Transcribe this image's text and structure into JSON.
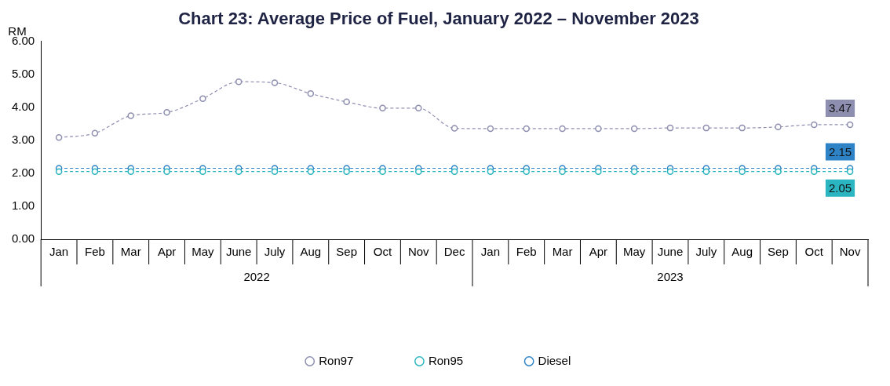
{
  "chart_data": {
    "type": "line",
    "title": "Chart 23: Average Price of Fuel, January 2022 – November 2023",
    "ylabel": "RM",
    "categories": [
      "Jan",
      "Feb",
      "Mar",
      "Apr",
      "May",
      "June",
      "July",
      "Aug",
      "Sep",
      "Oct",
      "Nov",
      "Dec",
      "Jan",
      "Feb",
      "Mar",
      "Apr",
      "May",
      "June",
      "July",
      "Aug",
      "Sep",
      "Oct",
      "Nov"
    ],
    "annotations": [
      "2022",
      "2023"
    ],
    "series": [
      {
        "name": "Ron97",
        "color": "#8e8fb0",
        "values": [
          3.08,
          3.21,
          3.74,
          3.84,
          4.26,
          4.77,
          4.74,
          4.41,
          4.16,
          3.97,
          3.97,
          3.36,
          3.35,
          3.35,
          3.35,
          3.35,
          3.35,
          3.37,
          3.37,
          3.37,
          3.4,
          3.47,
          3.47
        ],
        "value_labels": [
          null,
          null,
          null,
          null,
          null,
          null,
          null,
          null,
          null,
          null,
          null,
          null,
          null,
          null,
          null,
          null,
          null,
          null,
          null,
          null,
          null,
          null,
          "3.47"
        ]
      },
      {
        "name": "Ron95",
        "color": "#2bb5c0",
        "values": [
          2.05,
          2.05,
          2.05,
          2.05,
          2.05,
          2.05,
          2.05,
          2.05,
          2.05,
          2.05,
          2.05,
          2.05,
          2.05,
          2.05,
          2.05,
          2.05,
          2.05,
          2.05,
          2.05,
          2.05,
          2.05,
          2.05,
          2.05
        ],
        "value_labels": [
          null,
          null,
          null,
          null,
          null,
          null,
          null,
          null,
          null,
          null,
          null,
          null,
          null,
          null,
          null,
          null,
          null,
          null,
          null,
          null,
          null,
          null,
          "2.05"
        ]
      },
      {
        "name": "Diesel",
        "color": "#2e83c6",
        "values": [
          2.15,
          2.15,
          2.15,
          2.15,
          2.15,
          2.15,
          2.15,
          2.15,
          2.15,
          2.15,
          2.15,
          2.15,
          2.15,
          2.15,
          2.15,
          2.15,
          2.15,
          2.15,
          2.15,
          2.15,
          2.15,
          2.15,
          2.15
        ],
        "value_labels": [
          null,
          null,
          null,
          null,
          null,
          null,
          null,
          null,
          null,
          null,
          null,
          null,
          null,
          null,
          null,
          null,
          null,
          null,
          null,
          null,
          null,
          null,
          "2.15"
        ]
      }
    ],
    "ylim": [
      0,
      6
    ],
    "yticks": [
      {
        "value": 0,
        "label": "0.00"
      },
      {
        "value": 1,
        "label": "1.00"
      },
      {
        "value": 2,
        "label": "2.00"
      },
      {
        "value": 3,
        "label": "3.00"
      },
      {
        "value": 4,
        "label": "4.00"
      },
      {
        "value": 5,
        "label": "5.00"
      },
      {
        "value": 6,
        "label": "6.00"
      }
    ],
    "grid": false,
    "legend": "bottom",
    "marker": "circle",
    "line_style": "dashed"
  }
}
